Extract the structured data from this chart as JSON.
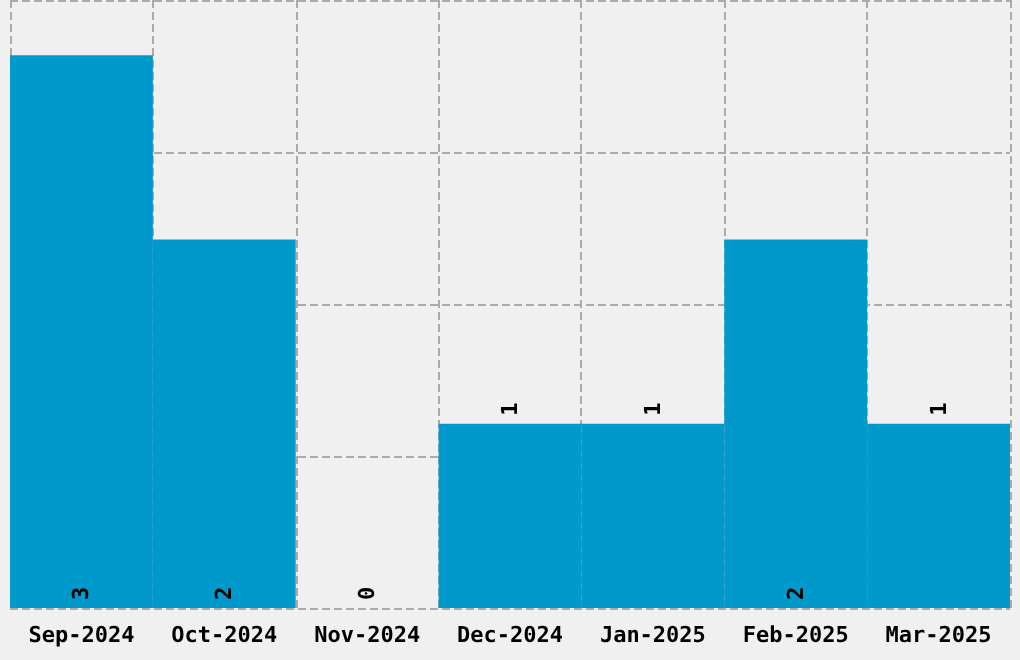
{
  "chart_data": {
    "type": "bar",
    "categories": [
      "Sep-2024",
      "Oct-2024",
      "Nov-2024",
      "Dec-2024",
      "Jan-2025",
      "Feb-2025",
      "Mar-2025"
    ],
    "values": [
      3,
      2,
      0,
      1,
      1,
      2,
      1
    ],
    "color": "#0099cc",
    "data_labels": true,
    "grid": true,
    "tick_labels": "x",
    "ylim": [
      0,
      3.3
    ],
    "yticks": [
      {
        "value": 0,
        "label": null
      },
      {
        "value": 0.825,
        "label": null
      },
      {
        "value": 1.65,
        "label": null
      },
      {
        "value": 2.475,
        "label": null
      },
      {
        "value": 3.3,
        "label": null
      }
    ]
  }
}
